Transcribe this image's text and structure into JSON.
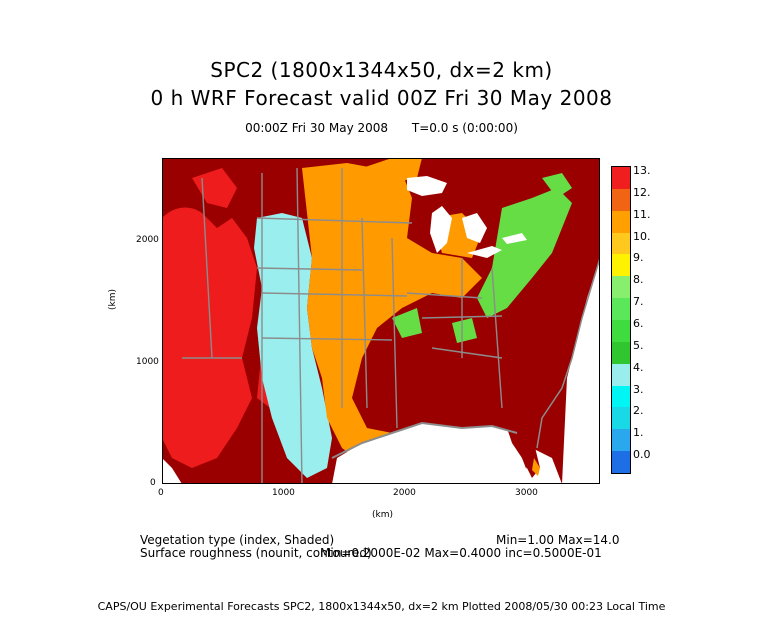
{
  "title": {
    "line1": "SPC2 (1800x1344x50, dx=2 km)",
    "line2": "0 h WRF Forecast valid 00Z Fri 30 May 2008"
  },
  "subtitle": {
    "time": "00:00Z Fri 30 May 2008",
    "t": "T=0.0 s (0:00:00)"
  },
  "axes": {
    "x_label": "(km)",
    "y_label": "(km)",
    "x_ticks": [
      "0",
      "1000",
      "2000",
      "3000"
    ],
    "y_ticks": [
      "0",
      "1000",
      "2000"
    ]
  },
  "colorbar": {
    "labels": [
      "0.0",
      "1.",
      "2.",
      "3.",
      "4.",
      "5.",
      "6.",
      "7.",
      "8.",
      "9.",
      "10.",
      "11.",
      "12.",
      "13."
    ],
    "colors": [
      "#1e6fe6",
      "#2aa8ee",
      "#19d9e6",
      "#00f5f5",
      "#99eded",
      "#2fc62f",
      "#3fdc3f",
      "#5ae85a",
      "#88ee6e",
      "#fff200",
      "#ffc81e",
      "#ffa000",
      "#f06414",
      "#f01e1e"
    ]
  },
  "map_colors": {
    "dark_red": "#9b0000",
    "red": "#ee1c1c",
    "orange": "#ff9a00",
    "light_cyan": "#9aeeee",
    "green": "#66dd44",
    "grey_border": "#8c8c8c",
    "water": "#ffffff"
  },
  "info": {
    "field1": "Vegetation type (index, Shaded)",
    "field1_range": "Min=1.00 Max=14.0",
    "field2": "Surface roughness (nounit, contoured)",
    "field2_range": "Min=0.2000E-02 Max=0.4000 inc=0.5000E-01"
  },
  "footer": "CAPS/OU Experimental Forecasts  SPC2, 1800x1344x50, dx=2 km  Plotted 2008/05/30 00:23 Local Time"
}
